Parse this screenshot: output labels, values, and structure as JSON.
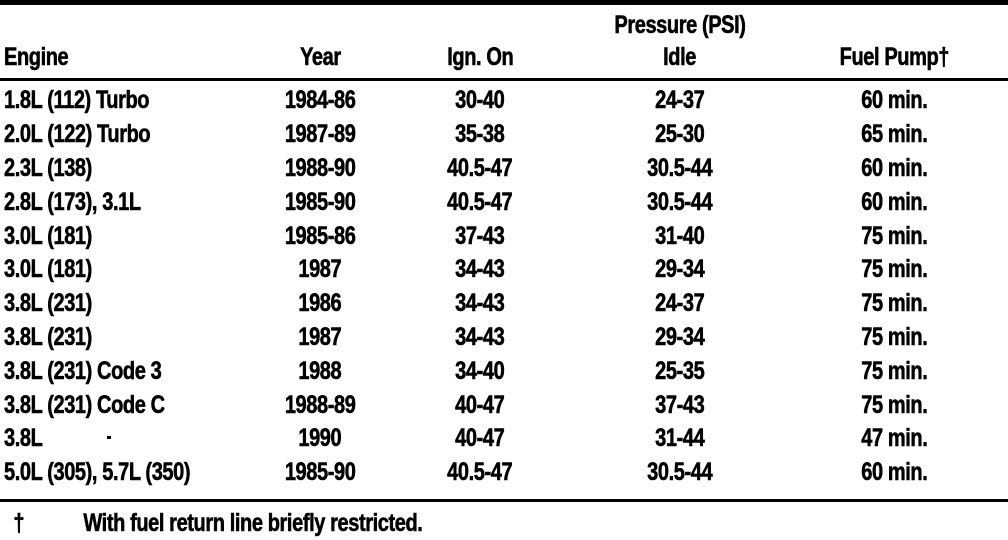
{
  "colors": {
    "ink": "#000000",
    "paper": "#ffffff"
  },
  "table": {
    "group_header": "Pressure (PSI)",
    "columns": {
      "engine": "Engine",
      "year": "Year",
      "ign_on": "Ign. On",
      "idle": "Idle",
      "fuel_pump": "Fuel Pump†"
    },
    "rows": [
      {
        "engine": "1.8L (112) Turbo",
        "year": "1984-86",
        "ign_on": "30-40",
        "idle": "24-37",
        "fuel_pump": "60 min."
      },
      {
        "engine": "2.0L (122) Turbo",
        "year": "1987-89",
        "ign_on": "35-38",
        "idle": "25-30",
        "fuel_pump": "65 min."
      },
      {
        "engine": "2.3L (138)",
        "year": "1988-90",
        "ign_on": "40.5-47",
        "idle": "30.5-44",
        "fuel_pump": "60 min."
      },
      {
        "engine": "2.8L (173), 3.1L",
        "year": "1985-90",
        "ign_on": "40.5-47",
        "idle": "30.5-44",
        "fuel_pump": "60 min."
      },
      {
        "engine": "3.0L (181)",
        "year": "1985-86",
        "ign_on": "37-43",
        "idle": "31-40",
        "fuel_pump": "75 min."
      },
      {
        "engine": "3.0L (181)",
        "year": "1987",
        "ign_on": "34-43",
        "idle": "29-34",
        "fuel_pump": "75 min."
      },
      {
        "engine": "3.8L (231)",
        "year": "1986",
        "ign_on": "34-43",
        "idle": "24-37",
        "fuel_pump": "75 min."
      },
      {
        "engine": "3.8L (231)",
        "year": "1987",
        "ign_on": "34-43",
        "idle": "29-34",
        "fuel_pump": "75 min."
      },
      {
        "engine": "3.8L (231) Code 3",
        "year": "1988",
        "ign_on": "34-40",
        "idle": "25-35",
        "fuel_pump": "75 min."
      },
      {
        "engine": "3.8L (231) Code C",
        "year": "1988-89",
        "ign_on": "40-47",
        "idle": "37-43",
        "fuel_pump": "75 min."
      },
      {
        "engine": "3.8L",
        "year": "1990",
        "ign_on": "40-47",
        "idle": "31-44",
        "fuel_pump": "47 min."
      },
      {
        "engine": "5.0L (305), 5.7L (350)",
        "year": "1985-90",
        "ign_on": "40.5-47",
        "idle": "30.5-44",
        "fuel_pump": "60 min."
      }
    ],
    "footnote": {
      "symbol": "†",
      "text": "With fuel return line briefly restricted."
    }
  }
}
